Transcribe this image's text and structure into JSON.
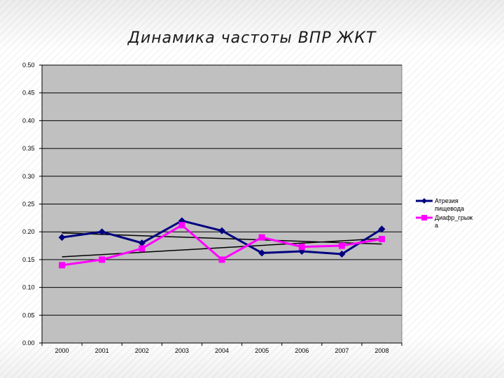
{
  "slide": {
    "title": "Динамика частоты ВПР ЖКТ"
  },
  "chart_data": {
    "type": "line",
    "title": "Динамика частоты ВПР ЖКТ",
    "xlabel": "",
    "ylabel": "",
    "categories": [
      "2000",
      "2001",
      "2002",
      "2003",
      "2004",
      "2005",
      "2006",
      "2007",
      "2008"
    ],
    "ylim": [
      0,
      0.5
    ],
    "yticks": [
      "0.00",
      "0.05",
      "0.10",
      "0.15",
      "0.20",
      "0.25",
      "0.30",
      "0.35",
      "0.40",
      "0.45",
      "0.50"
    ],
    "grid": true,
    "legend_position": "right",
    "plot_background": "#c0c0c0",
    "series": [
      {
        "name": "Атрезия пищевода",
        "legend_lines": [
          "Атрезия",
          "пищевода"
        ],
        "color": "#000080",
        "marker": "diamond",
        "values": [
          0.19,
          0.2,
          0.18,
          0.22,
          0.202,
          0.162,
          0.165,
          0.16,
          0.205
        ],
        "trendline": [
          0.198,
          0.178
        ]
      },
      {
        "name": "Диафр_грыжа",
        "legend_lines": [
          "Диафр_грыж",
          "а"
        ],
        "color": "#ff00ff",
        "marker": "square",
        "values": [
          0.14,
          0.15,
          0.17,
          0.212,
          0.15,
          0.19,
          0.173,
          0.175,
          0.187
        ],
        "trendline": [
          0.155,
          0.188
        ]
      }
    ],
    "trendline_color": "#000000"
  }
}
